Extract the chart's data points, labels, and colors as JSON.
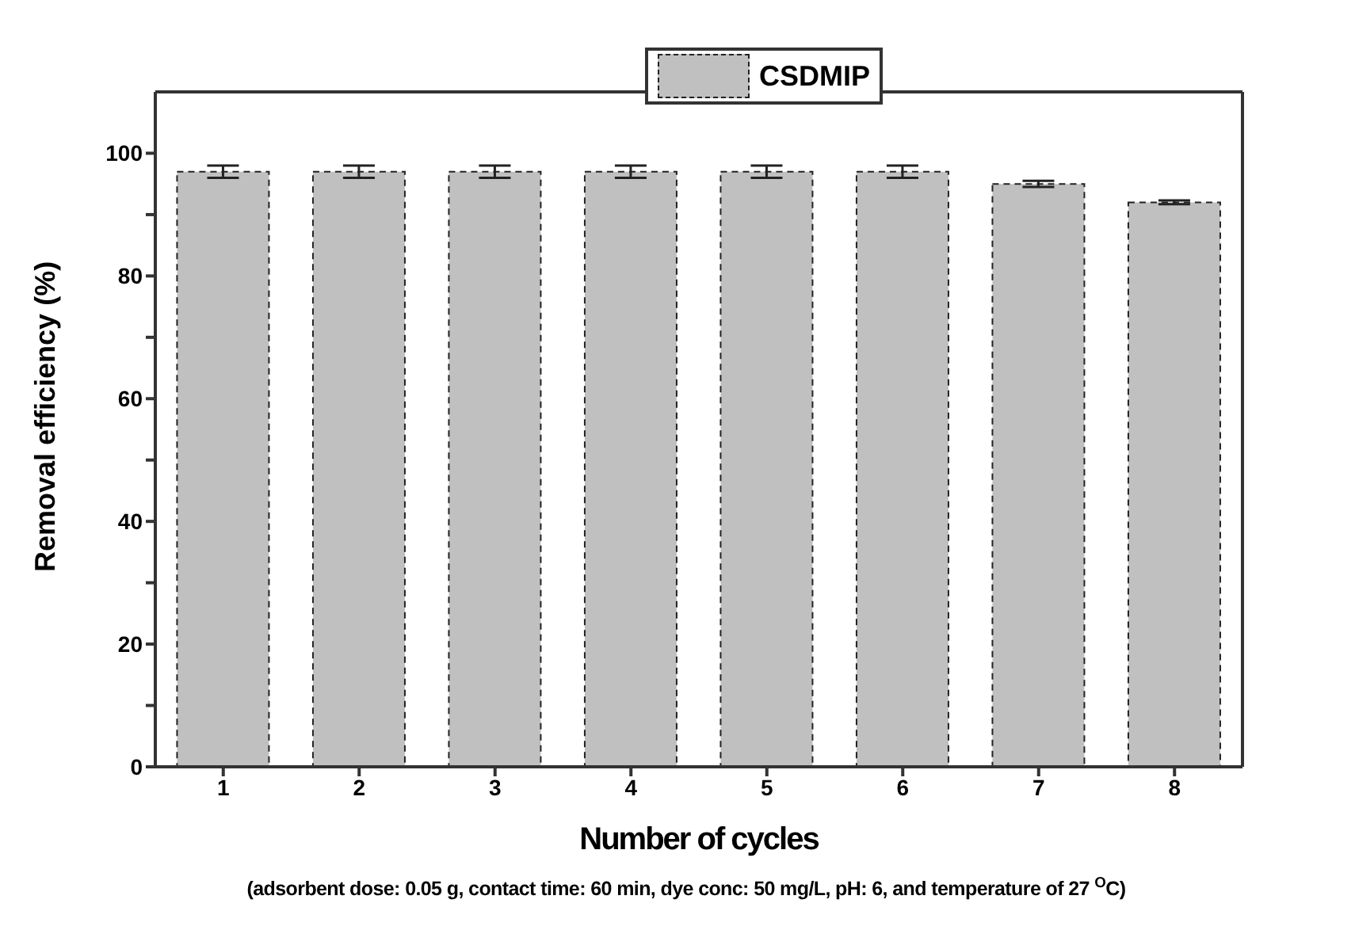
{
  "chart_data": {
    "type": "bar",
    "categories": [
      "1",
      "2",
      "3",
      "4",
      "5",
      "6",
      "7",
      "8"
    ],
    "series": [
      {
        "name": "CSDMIP",
        "color": "#c0c0c0",
        "values": [
          97,
          97,
          97,
          97,
          97,
          97,
          95,
          92
        ],
        "errors": [
          1,
          1,
          1,
          1,
          1,
          1,
          0.5,
          0.3
        ]
      }
    ],
    "xlabel": "Number of cycles",
    "ylabel": "Removal efficiency (%)",
    "annotations": [
      "(adsorbent dose: 0.05 g, contact time: 60 min, dye conc: 50 mg/L, pH: 6, and temperature of 27 $^{O}$C)"
    ],
    "ylim": [
      0,
      110
    ],
    "yticks": [
      0,
      20,
      40,
      60,
      80,
      100,
      {
        "value": 10,
        "label": null
      },
      {
        "value": 30,
        "label": null
      },
      {
        "value": 50,
        "label": null
      },
      {
        "value": 70,
        "label": null
      },
      {
        "value": 90,
        "label": null
      }
    ],
    "legend": "top",
    "line_style": "dashed",
    "grid": false
  }
}
